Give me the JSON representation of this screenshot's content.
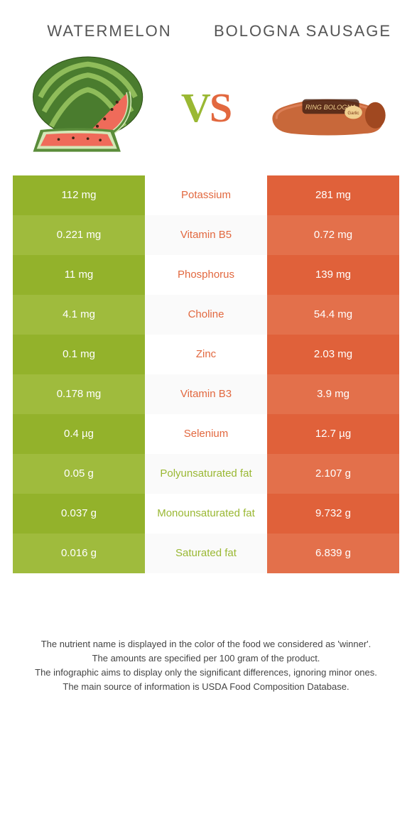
{
  "header": {
    "left_title": "WATERMELON",
    "right_title": "BOLOGNA SAUSAGE",
    "vs": "VS"
  },
  "colors": {
    "left_primary": "#93b22b",
    "left_secondary": "#9fbb3d",
    "right_primary": "#e0613a",
    "right_secondary": "#e3704b",
    "left_text": "#9ab833",
    "right_text": "#e2683f",
    "background": "#ffffff",
    "header_text": "#555555",
    "footnote_text": "#444444"
  },
  "rows": [
    {
      "left": "112 mg",
      "label": "Potassium",
      "right": "281 mg",
      "winner": "right"
    },
    {
      "left": "0.221 mg",
      "label": "Vitamin B5",
      "right": "0.72 mg",
      "winner": "right"
    },
    {
      "left": "11 mg",
      "label": "Phosphorus",
      "right": "139 mg",
      "winner": "right"
    },
    {
      "left": "4.1 mg",
      "label": "Choline",
      "right": "54.4 mg",
      "winner": "right"
    },
    {
      "left": "0.1 mg",
      "label": "Zinc",
      "right": "2.03 mg",
      "winner": "right"
    },
    {
      "left": "0.178 mg",
      "label": "Vitamin B3",
      "right": "3.9 mg",
      "winner": "right"
    },
    {
      "left": "0.4 µg",
      "label": "Selenium",
      "right": "12.7 µg",
      "winner": "right"
    },
    {
      "left": "0.05 g",
      "label": "Polyunsaturated fat",
      "right": "2.107 g",
      "winner": "left"
    },
    {
      "left": "0.037 g",
      "label": "Monounsaturated fat",
      "right": "9.732 g",
      "winner": "left"
    },
    {
      "left": "0.016 g",
      "label": "Saturated fat",
      "right": "6.839 g",
      "winner": "left"
    }
  ],
  "footnotes": [
    "The nutrient name is displayed in the color of the food we considered as 'winner'.",
    "The amounts are specified per 100 gram of the product.",
    "The infographic aims to display only the significant differences, ignoring minor ones.",
    "The main source of information is USDA Food Composition Database."
  ]
}
